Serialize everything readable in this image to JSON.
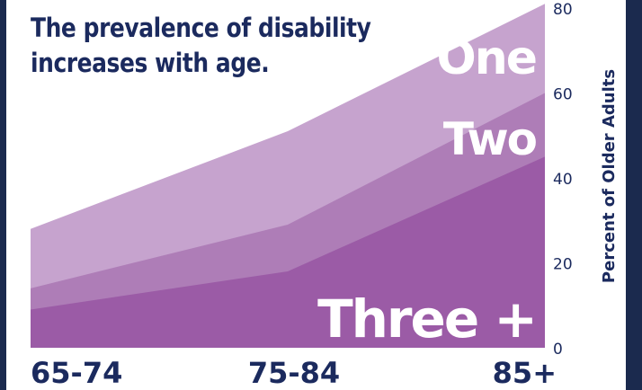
{
  "title_lines": [
    "The prevalence of disability",
    "increases with age."
  ],
  "chart_data": {
    "type": "area",
    "stacked": true,
    "title": "The prevalence of disability increases with age.",
    "categories": [
      "65-74",
      "75-84",
      "85+"
    ],
    "ylabel": "Percent of Older Adults",
    "ylim": [
      0,
      80
    ],
    "yticks": [
      0,
      20,
      40,
      60,
      80
    ],
    "y_axis_position": "right",
    "grid": false,
    "legend": "labels drawn inside the areas",
    "series": [
      {
        "name": "Three +",
        "values": [
          9,
          18,
          45
        ],
        "color": "#9b5ba6"
      },
      {
        "name": "Two",
        "values": [
          5,
          11,
          15
        ],
        "color": "#ae7db7"
      },
      {
        "name": "One",
        "values": [
          14,
          22,
          21
        ],
        "color": "#c6a3ce"
      }
    ]
  }
}
